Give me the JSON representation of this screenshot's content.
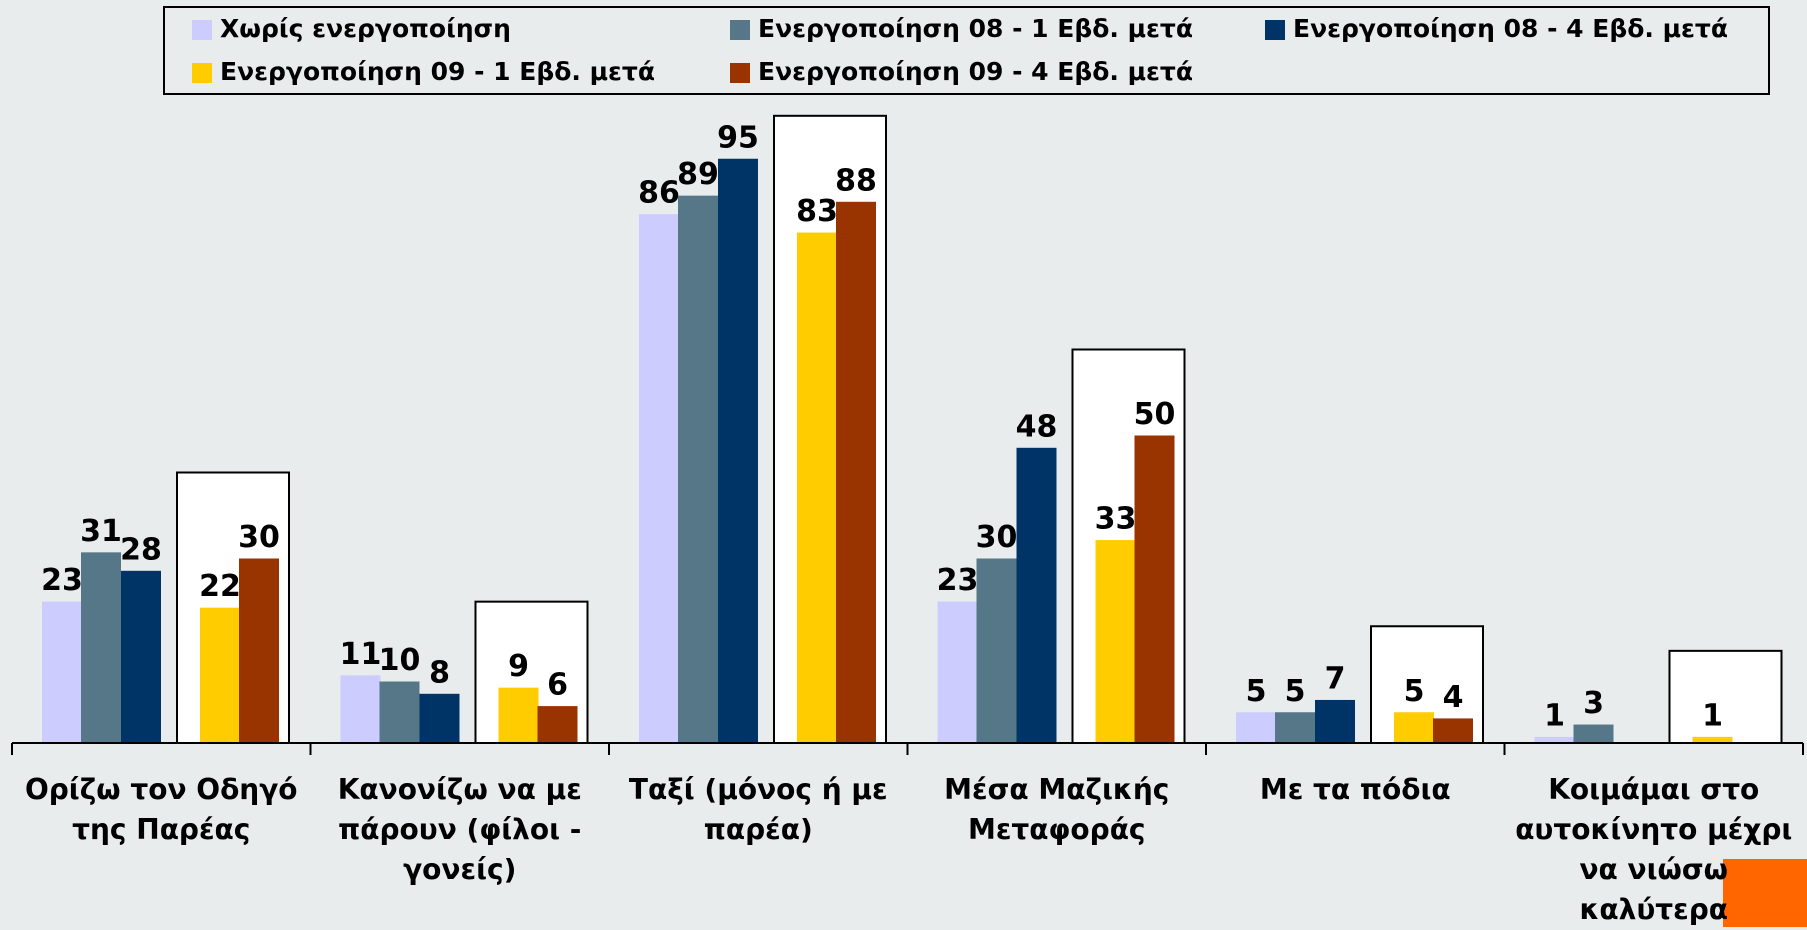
{
  "chart_data": {
    "type": "bar",
    "categories": [
      "Ορίζω τον Οδηγό της Παρέας",
      "Κανονίζω να με πάρουν (φίλοι - γονείς)",
      "Ταξί (μόνος ή με παρέα)",
      "Μέσα Μαζικής Μεταφοράς",
      "Με τα πόδια",
      "Κοιμάμαι στο αυτοκίνητο μέχρι να νιώσω καλύτερα"
    ],
    "series": [
      {
        "name": "Χωρίς ενεργοποίηση",
        "color": "#ccccff",
        "values": [
          23,
          11,
          86,
          23,
          5,
          1
        ]
      },
      {
        "name": "Ενεργοποίηση 08 - 1 Εβδ. μετά",
        "color": "#557788",
        "values": [
          31,
          10,
          89,
          30,
          5,
          3
        ]
      },
      {
        "name": "Ενεργοποίηση 08 - 4 Εβδ. μετά",
        "color": "#003366",
        "values": [
          28,
          8,
          95,
          48,
          7,
          null
        ]
      },
      {
        "name": "Ενεργοποίηση 09 - 1 Εβδ. μετά",
        "color": "#ffcc00",
        "values": [
          22,
          9,
          83,
          33,
          5,
          1
        ]
      },
      {
        "name": "Ενεργοποίηση 09 - 4 Εβδ. μετά",
        "color": "#993300",
        "values": [
          30,
          6,
          88,
          50,
          4,
          null
        ]
      }
    ]
  }
}
